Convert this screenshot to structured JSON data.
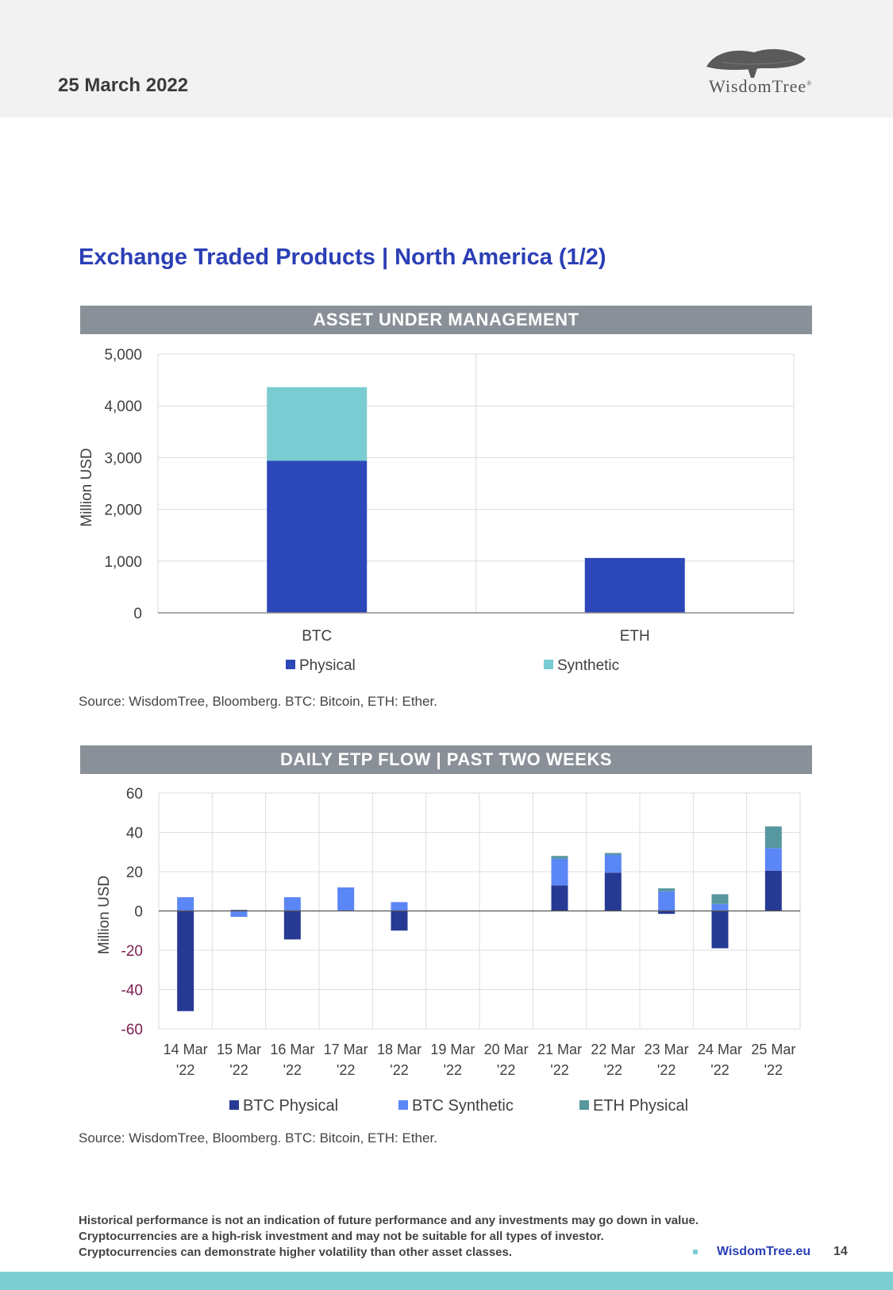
{
  "header": {
    "date": "25 March 2022",
    "brand": "WisdomTree"
  },
  "page": {
    "title": "Exchange Traded Products | North America (1/2)"
  },
  "aum_section": {
    "banner": "ASSET UNDER MANAGEMENT",
    "source": "Source: WisdomTree, Bloomberg. BTC: Bitcoin, ETH: Ether."
  },
  "flow_section": {
    "banner": "DAILY ETP FLOW | PAST TWO WEEKS",
    "source": "Source: WisdomTree, Bloomberg. BTC: Bitcoin, ETH: Ether."
  },
  "colors": {
    "physical": "#2b47b8",
    "synthetic": "#79ccd1",
    "btc_physical": "#263a94",
    "btc_synthetic": "#5b86f5",
    "eth_physical": "#57979f",
    "negative_tick": "#7a1f4f",
    "accent": "#2b3fb5"
  },
  "chart_data": [
    {
      "type": "bar",
      "stacked": true,
      "title": "ASSET UNDER MANAGEMENT",
      "categories": [
        "BTC",
        "ETH"
      ],
      "series": [
        {
          "name": "Physical",
          "values": [
            2940,
            1060
          ]
        },
        {
          "name": "Synthetic",
          "values": [
            1420,
            0
          ]
        }
      ],
      "ylabel": "Million USD",
      "ylim": [
        0,
        5000
      ],
      "yticks": [
        "0",
        "1,000",
        "2,000",
        "3,000",
        "4,000",
        "5,000"
      ],
      "ytick_values": [
        0,
        1000,
        2000,
        3000,
        4000,
        5000
      ],
      "legend": [
        "Physical",
        "Synthetic"
      ],
      "grid": true
    },
    {
      "type": "bar",
      "stacked": true,
      "title": "DAILY ETP FLOW | PAST TWO WEEKS",
      "categories": [
        [
          "14 Mar",
          "'22"
        ],
        [
          "15 Mar",
          "'22"
        ],
        [
          "16 Mar",
          "'22"
        ],
        [
          "17 Mar",
          "'22"
        ],
        [
          "18 Mar",
          "'22"
        ],
        [
          "19 Mar",
          "'22"
        ],
        [
          "20 Mar",
          "'22"
        ],
        [
          "21 Mar",
          "'22"
        ],
        [
          "22 Mar",
          "'22"
        ],
        [
          "23 Mar",
          "'22"
        ],
        [
          "24 Mar",
          "'22"
        ],
        [
          "25 Mar",
          "'22"
        ]
      ],
      "series": [
        {
          "name": "BTC Physical",
          "values": [
            -51,
            0.5,
            -14.5,
            0,
            -10,
            0,
            0,
            13,
            19.5,
            -1.5,
            -19,
            20.5
          ]
        },
        {
          "name": "BTC Synthetic",
          "values": [
            7,
            -3,
            7,
            12,
            4.5,
            0,
            0,
            13.5,
            9,
            10,
            3.5,
            11.5
          ]
        },
        {
          "name": "ETH Physical",
          "values": [
            0,
            0,
            0,
            0,
            0,
            0,
            0,
            1.5,
            1,
            1.5,
            5,
            11
          ]
        }
      ],
      "ylabel": "Million USD",
      "ylim": [
        -60,
        60
      ],
      "yticks": [
        "-60",
        "-40",
        "-20",
        "0",
        "20",
        "40",
        "60"
      ],
      "ytick_values": [
        -60,
        -40,
        -20,
        0,
        20,
        40,
        60
      ],
      "legend": [
        "BTC Physical",
        "BTC Synthetic",
        "ETH Physical"
      ],
      "grid": true
    }
  ],
  "footer": {
    "disclaimer_line1": "Historical performance is not an indication of future performance and any investments may go down in value.",
    "disclaimer_line2": "Cryptocurrencies are a high-risk investment and may not be suitable for all types of investor.",
    "disclaimer_line3": "Cryptocurrencies can demonstrate higher volatility than other asset classes.",
    "website": "WisdomTree.eu",
    "page_number": "14"
  }
}
